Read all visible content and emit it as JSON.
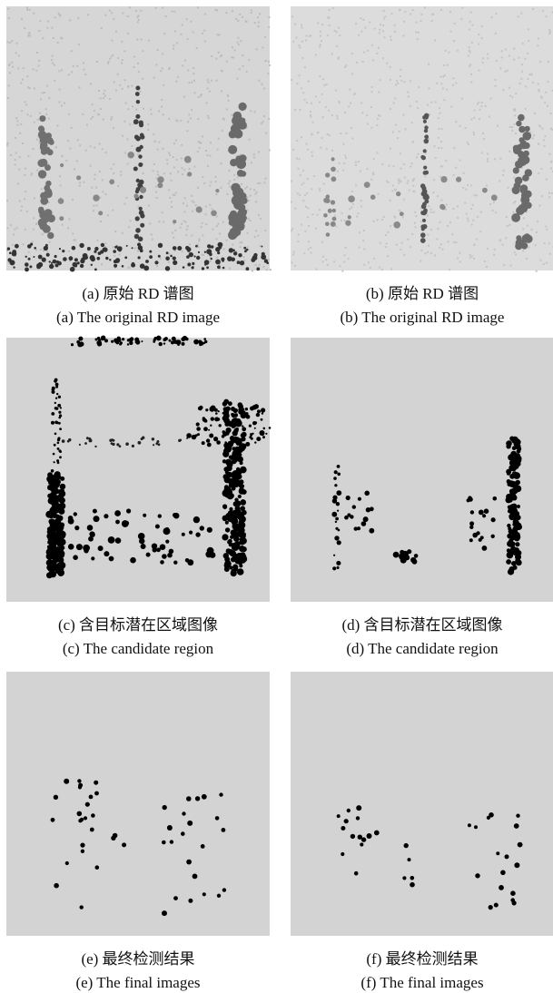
{
  "panels": [
    {
      "caption_zh": "(a) 原始 RD 谱图",
      "caption_en": "(a) The original RD image"
    },
    {
      "caption_zh": "(b) 原始 RD 谱图",
      "caption_en": "(b) The original RD image"
    },
    {
      "caption_zh": "(c) 含目标潜在区域图像",
      "caption_en": "(c) The candidate region"
    },
    {
      "caption_zh": "(d) 含目标潜在区域图像",
      "caption_en": "(d) The candidate region"
    },
    {
      "caption_zh": "(e) 最终检测结果",
      "caption_en": "(e) The final images"
    },
    {
      "caption_zh": "(f) 最终检测结果",
      "caption_en": "(f) The final images"
    }
  ]
}
